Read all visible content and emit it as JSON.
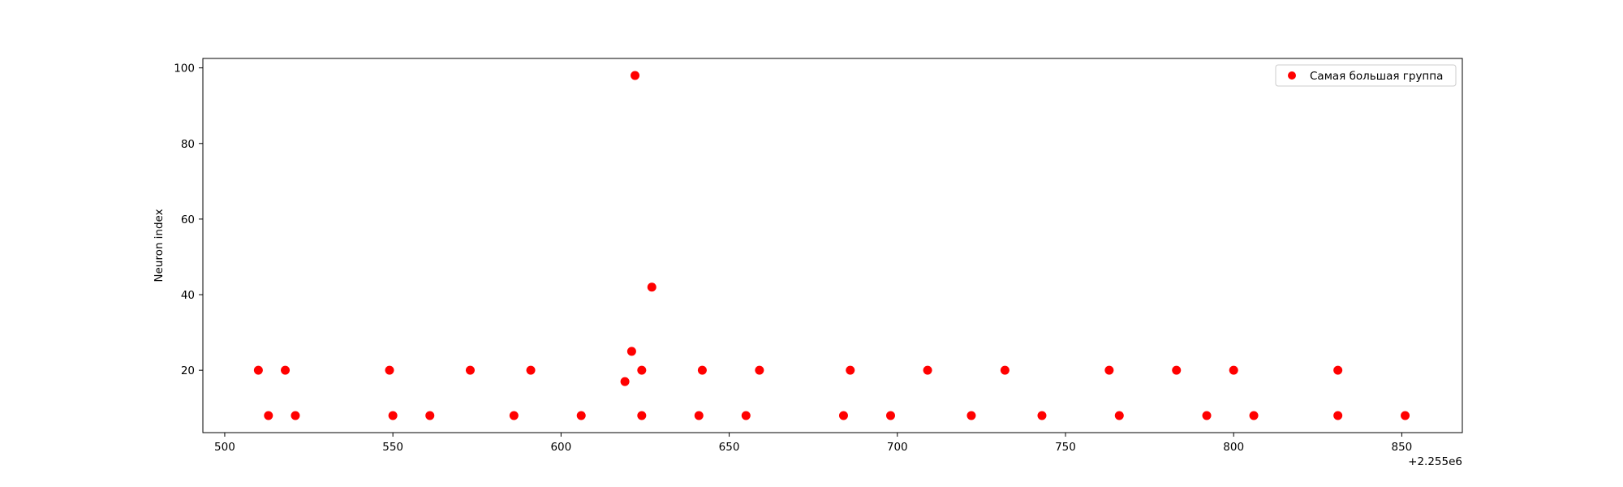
{
  "chart_data": {
    "type": "scatter",
    "title": "",
    "xlabel": "",
    "ylabel": "Neuron index",
    "x_offset_label": "+2.255e6",
    "xlim": [
      493.5,
      868
    ],
    "ylim": [
      3.5,
      102.5
    ],
    "xticks": [
      500,
      550,
      600,
      650,
      700,
      750,
      800,
      850
    ],
    "yticks": [
      20,
      40,
      60,
      80,
      100
    ],
    "grid": false,
    "legend_position": "top-right",
    "marker_color": "#ff0000",
    "series": [
      {
        "name": "Самая большая группа",
        "points": [
          [
            510,
            20
          ],
          [
            513,
            8
          ],
          [
            518,
            20
          ],
          [
            521,
            8
          ],
          [
            549,
            20
          ],
          [
            550,
            8
          ],
          [
            561,
            8
          ],
          [
            573,
            20
          ],
          [
            586,
            8
          ],
          [
            591,
            20
          ],
          [
            606,
            8
          ],
          [
            619,
            17
          ],
          [
            621,
            25
          ],
          [
            622,
            98
          ],
          [
            624,
            20
          ],
          [
            624,
            8
          ],
          [
            627,
            42
          ],
          [
            641,
            8
          ],
          [
            642,
            20
          ],
          [
            655,
            8
          ],
          [
            659,
            20
          ],
          [
            684,
            8
          ],
          [
            686,
            20
          ],
          [
            698,
            8
          ],
          [
            709,
            20
          ],
          [
            722,
            8
          ],
          [
            732,
            20
          ],
          [
            743,
            8
          ],
          [
            763,
            20
          ],
          [
            766,
            8
          ],
          [
            783,
            20
          ],
          [
            792,
            8
          ],
          [
            800,
            20
          ],
          [
            806,
            8
          ],
          [
            831,
            20
          ],
          [
            831,
            8
          ],
          [
            851,
            8
          ]
        ]
      }
    ]
  }
}
